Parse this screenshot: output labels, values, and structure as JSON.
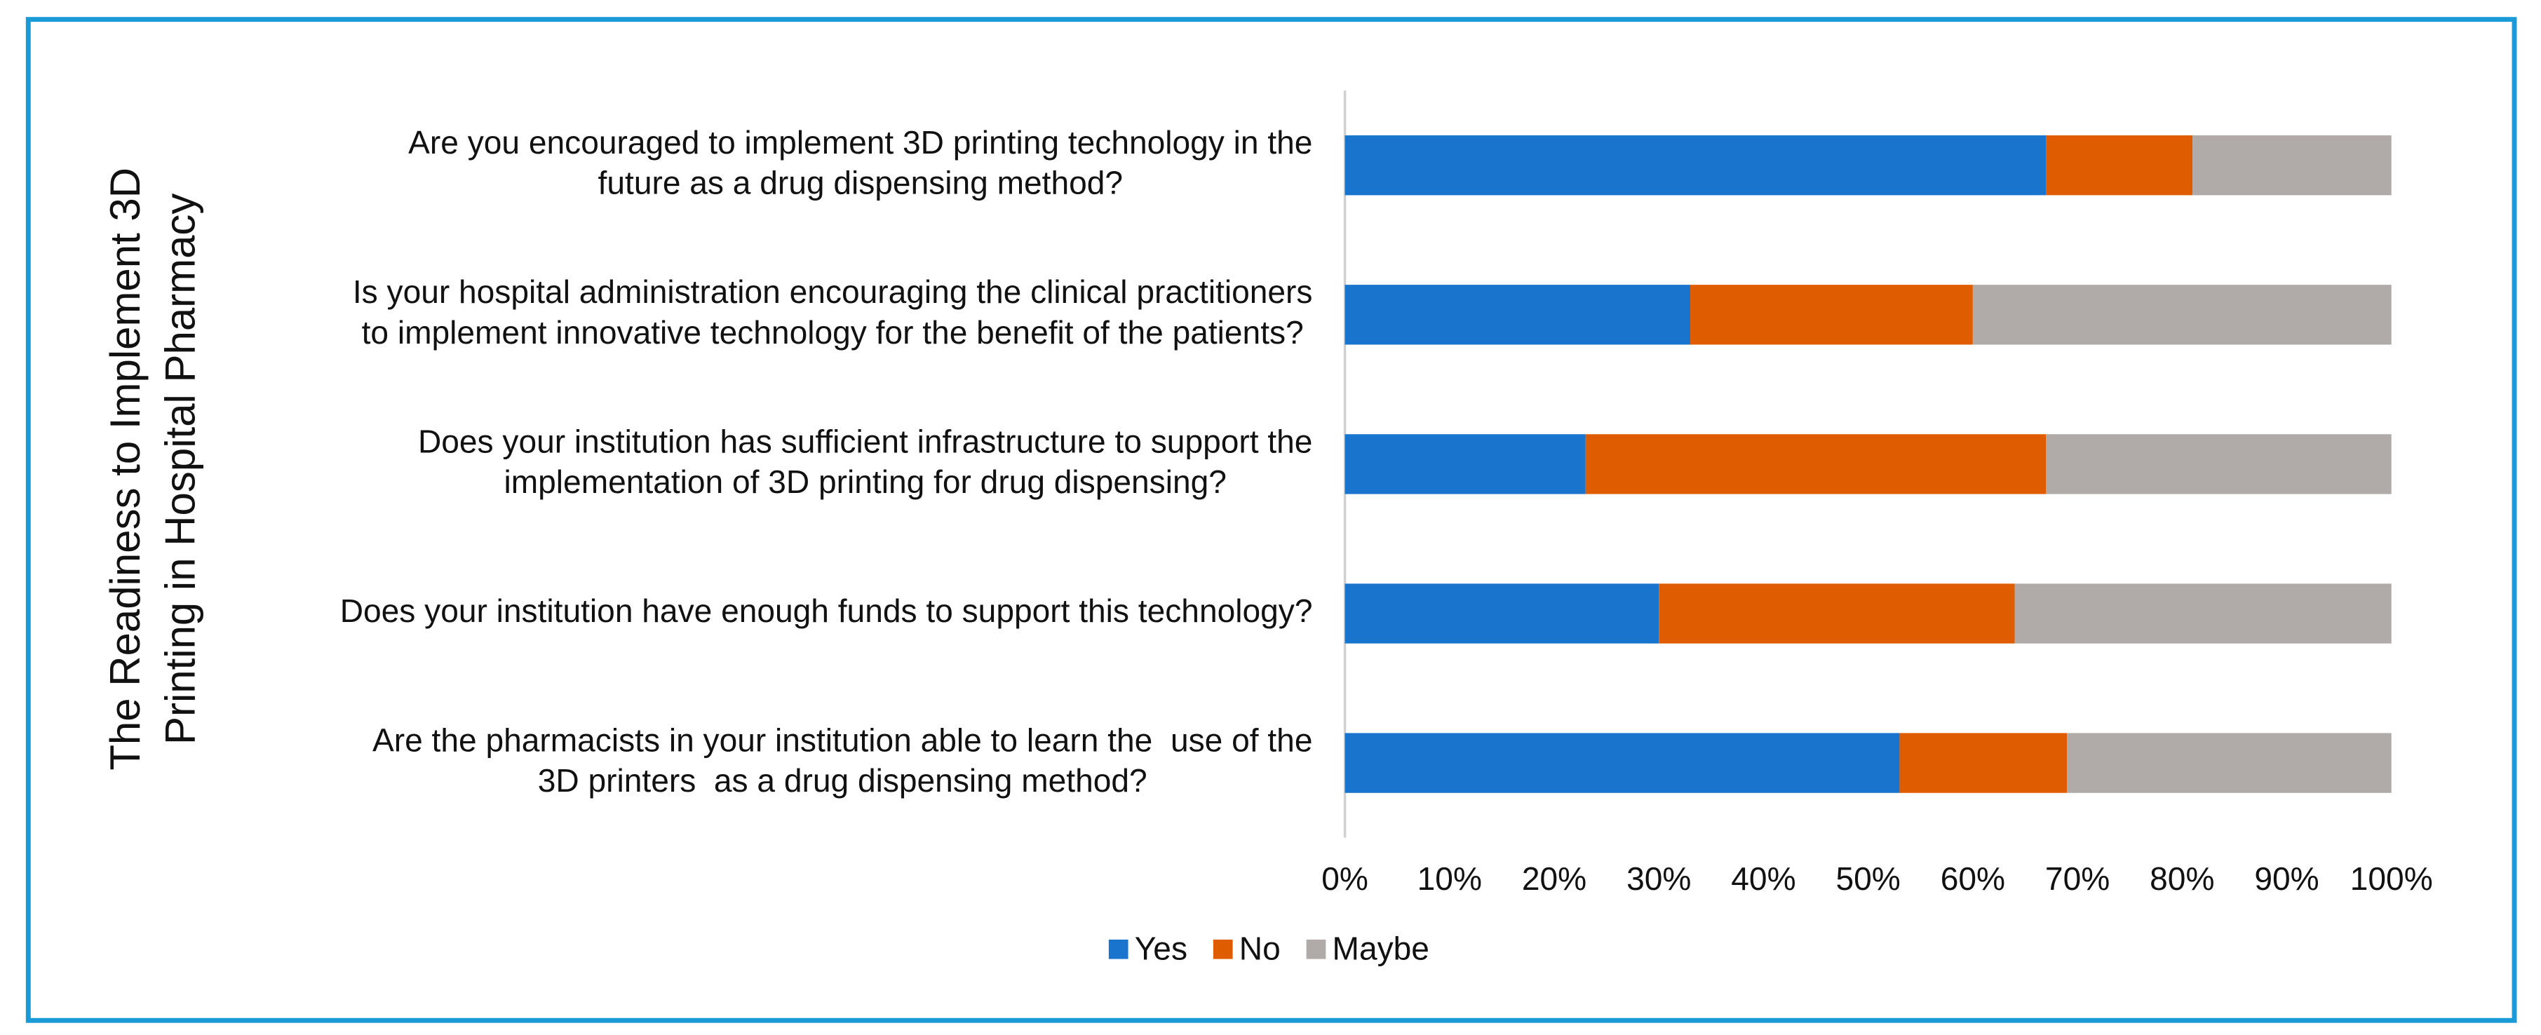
{
  "chart_data": {
    "type": "stacked_barh",
    "y_axis_label": [
      "The Readiness to Implement 3D",
      "Printing in Hospital Pharmacy"
    ],
    "categories": [
      [
        "Are you encouraged to implement 3D printing technology in the",
        "future as a drug dispensing method?"
      ],
      [
        "Is your hospital administration encouraging the clinical practitioners",
        "to implement innovative technology for the benefit of the patients?"
      ],
      [
        "Does your institution has sufficient infrastructure to support the",
        "implementation of 3D printing for drug dispensing?"
      ],
      [
        "Does your institution have enough funds to support this technology?"
      ],
      [
        "Are the pharmacists in your institution able to learn the  use of the",
        "3D printers  as a drug dispensing method?"
      ]
    ],
    "series": [
      {
        "name": "Yes",
        "color": "#1874cd",
        "values": [
          67,
          33,
          23,
          30,
          53
        ]
      },
      {
        "name": "No",
        "color": "#e05c00",
        "values": [
          14,
          27,
          44,
          34,
          16
        ]
      },
      {
        "name": "Maybe",
        "color": "#b0aba8",
        "values": [
          19,
          40,
          33,
          36,
          31
        ]
      }
    ],
    "xlim": [
      0,
      100
    ],
    "xticks": [
      {
        "value": 0,
        "label": "0%"
      },
      {
        "value": 10,
        "label": "10%"
      },
      {
        "value": 20,
        "label": "20%"
      },
      {
        "value": 30,
        "label": "30%"
      },
      {
        "value": 40,
        "label": "40%"
      },
      {
        "value": 50,
        "label": "50%"
      },
      {
        "value": 60,
        "label": "60%"
      },
      {
        "value": 70,
        "label": "70%"
      },
      {
        "value": 80,
        "label": "80%"
      },
      {
        "value": 90,
        "label": "90%"
      },
      {
        "value": 100,
        "label": "100%"
      }
    ],
    "legend": "bottom"
  }
}
